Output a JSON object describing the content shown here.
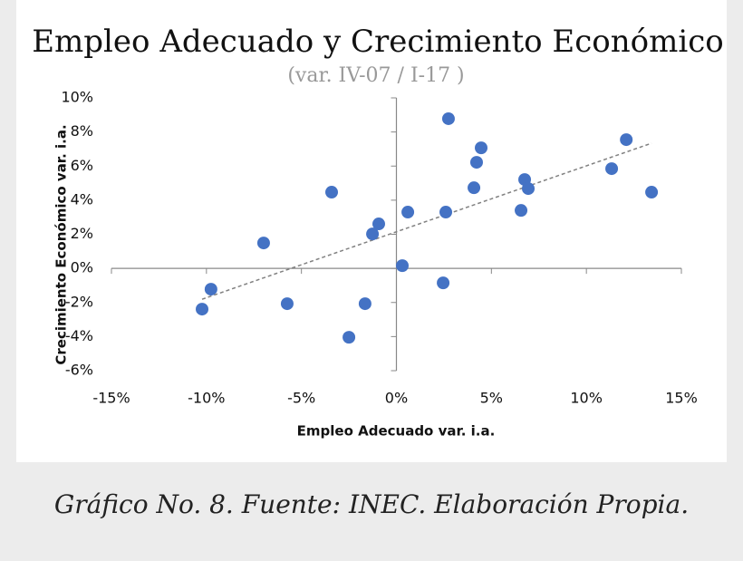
{
  "chart_data": {
    "type": "scatter",
    "title": "Empleo Adecuado y Crecimiento Económico",
    "subtitle": "(var. IV-07 / I-17 )",
    "x_label": "Empleo Adecuado var. i.a.",
    "y_label": "Crecimiento Económico  var. i.a.",
    "color": "#4472c4",
    "x": [
      -10.23,
      -9.76,
      -6.99,
      -5.75,
      -3.41,
      -2.5,
      -1.65,
      -1.26,
      -0.93,
      0.31,
      0.6,
      2.46,
      2.6,
      2.74,
      4.08,
      4.22,
      4.46,
      6.56,
      6.75,
      6.94,
      11.33,
      12.1,
      13.43
    ],
    "values": [
      -2.39,
      -1.22,
      1.49,
      -2.07,
      4.47,
      -4.04,
      -2.07,
      2.02,
      2.61,
      0.16,
      3.3,
      -0.85,
      3.3,
      8.78,
      4.73,
      6.22,
      7.07,
      3.4,
      5.21,
      4.68,
      5.85,
      7.55,
      4.47
    ],
    "trendline": {
      "x": [
        -10.23,
        13.43
      ],
      "values": [
        -1.81,
        7.34
      ],
      "color": "#808080"
    },
    "xlim": [
      -15,
      15
    ],
    "ylim": [
      -6,
      10
    ],
    "xticks": [
      {
        "value": -15,
        "label": "-15%"
      },
      {
        "value": -10,
        "label": "-10%"
      },
      {
        "value": -5,
        "label": "-5%"
      },
      {
        "value": 0,
        "label": "0%"
      },
      {
        "value": 5,
        "label": "5%"
      },
      {
        "value": 10,
        "label": "10%"
      },
      {
        "value": 15,
        "label": "15%"
      }
    ],
    "yticks": [
      {
        "value": -6,
        "label": "-6%"
      },
      {
        "value": -4,
        "label": "-4%"
      },
      {
        "value": -2,
        "label": "-2%"
      },
      {
        "value": 0,
        "label": "0%"
      },
      {
        "value": 2,
        "label": "2%"
      },
      {
        "value": 4,
        "label": "4%"
      },
      {
        "value": 6,
        "label": "6%"
      },
      {
        "value": 8,
        "label": "8%"
      },
      {
        "value": 10,
        "label": "10%"
      }
    ]
  },
  "caption": "Gráfico No. 8. Fuente: INEC. Elaboración Propia."
}
